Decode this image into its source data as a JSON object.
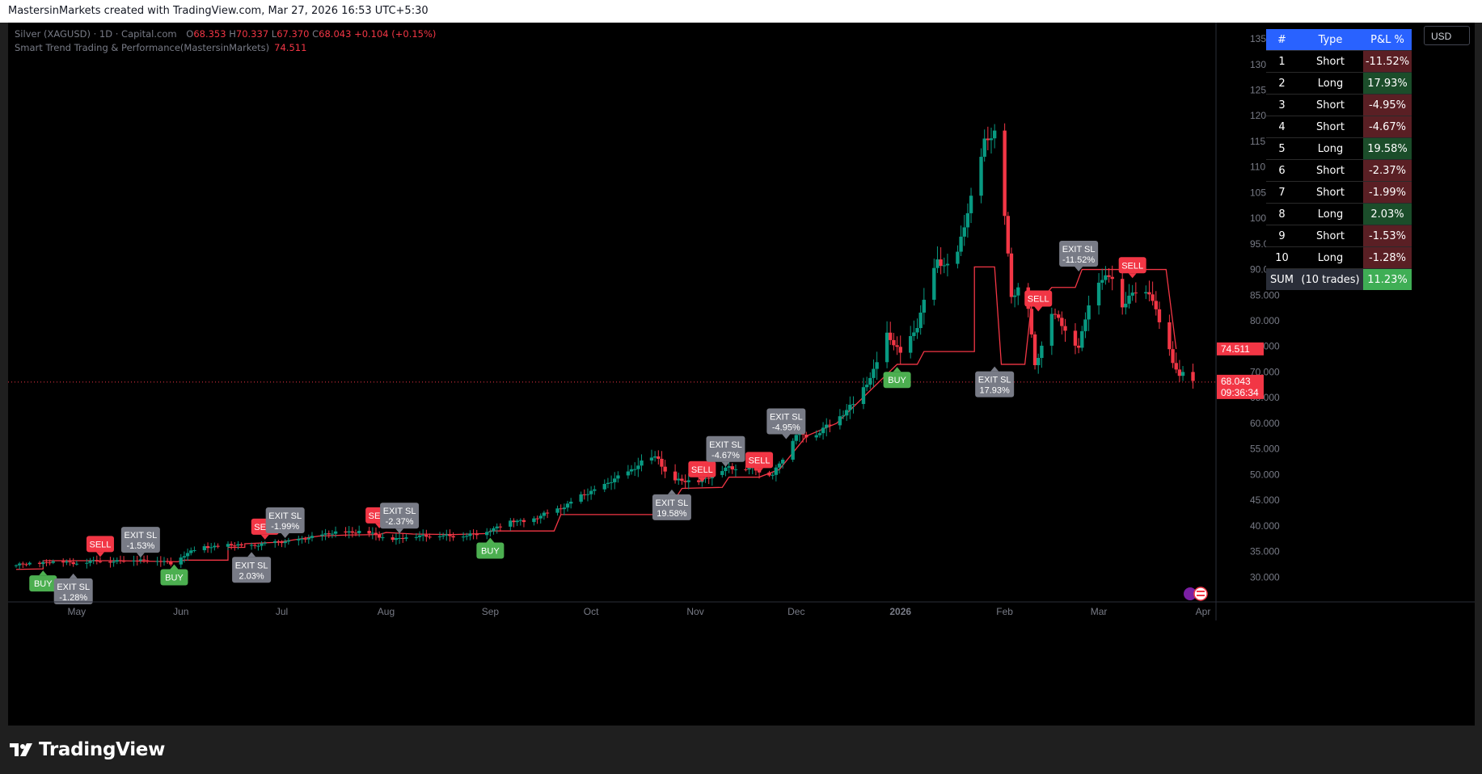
{
  "header": {
    "credit": "MastersinMarkets created with TradingView.com, Mar 27, 2026 16:53 UTC+5:30"
  },
  "legend": {
    "symbol": "Silver (XAGUSD) · 1D · Capital.com",
    "o_label": "O",
    "o_value": "68.353",
    "h_label": "H",
    "h_value": "70.337",
    "l_label": "L",
    "l_value": "67.370",
    "c_label": "C",
    "c_value": "68.043",
    "change": "+0.104 (+0.15%)",
    "indicator": "Smart Trend Trading & Performance(MastersinMarkets)",
    "indicator_value": "74.511"
  },
  "currency_button": "USD",
  "price_labels": {
    "indicator": "74.511",
    "last": "68.043",
    "countdown": "09:36:34"
  },
  "logo_text": "TradingView",
  "colors": {
    "up": "#089981",
    "down": "#f23645",
    "buy": "#4caf50",
    "sell": "#f23645",
    "exit": "#787b86",
    "header": "#2962ff"
  },
  "trade_table": {
    "headers": [
      "#",
      "Type",
      "P&L %"
    ],
    "rows": [
      {
        "n": "1",
        "type": "Short",
        "pnl": "-11.52%",
        "pos": false
      },
      {
        "n": "2",
        "type": "Long",
        "pnl": "17.93%",
        "pos": true
      },
      {
        "n": "3",
        "type": "Short",
        "pnl": "-4.95%",
        "pos": false
      },
      {
        "n": "4",
        "type": "Short",
        "pnl": "-4.67%",
        "pos": false
      },
      {
        "n": "5",
        "type": "Long",
        "pnl": "19.58%",
        "pos": true
      },
      {
        "n": "6",
        "type": "Short",
        "pnl": "-2.37%",
        "pos": false
      },
      {
        "n": "7",
        "type": "Short",
        "pnl": "-1.99%",
        "pos": false
      },
      {
        "n": "8",
        "type": "Long",
        "pnl": "2.03%",
        "pos": true
      },
      {
        "n": "9",
        "type": "Short",
        "pnl": "-1.53%",
        "pos": false
      },
      {
        "n": "10",
        "type": "Long",
        "pnl": "-1.28%",
        "pos": false
      }
    ],
    "sum": {
      "n": "SUM",
      "type": "(10 trades)",
      "pnl": "11.23%"
    }
  },
  "chart_data": {
    "type": "candlestick",
    "y_ticks": [
      30,
      35,
      40,
      45,
      50,
      55,
      60,
      65,
      70,
      75,
      80,
      85,
      90,
      95,
      100,
      105,
      110,
      115,
      120,
      125,
      130,
      135
    ],
    "y_tick_labels": [
      "30.000",
      "35.000",
      "40.000",
      "45.000",
      "50.000",
      "55.000",
      "60.000",
      "65.000",
      "70.000",
      "75.000",
      "80.000",
      "85.000",
      "90.000",
      "95.000",
      "100.000",
      "105.000",
      "110.000",
      "115.000",
      "120.000",
      "125.000",
      "130.000",
      "135.000"
    ],
    "ylim": [
      25,
      138
    ],
    "x_ticks": [
      {
        "label": "May",
        "day": 18
      },
      {
        "label": "Jun",
        "day": 49
      },
      {
        "label": "Jul",
        "day": 79
      },
      {
        "label": "Aug",
        "day": 110
      },
      {
        "label": "Sep",
        "day": 141
      },
      {
        "label": "Oct",
        "day": 171
      },
      {
        "label": "Nov",
        "day": 202
      },
      {
        "label": "Dec",
        "day": 232
      },
      {
        "label": "2026",
        "day": 263
      },
      {
        "label": "Feb",
        "day": 294
      },
      {
        "label": "Mar",
        "day": 322
      },
      {
        "label": "Apr",
        "day": 353
      }
    ],
    "x_range": [
      0,
      353
    ],
    "close_anchors": [
      [
        0,
        32.3
      ],
      [
        10,
        33.0
      ],
      [
        18,
        32.8
      ],
      [
        25,
        33.1
      ],
      [
        32,
        33.2
      ],
      [
        40,
        33.4
      ],
      [
        46,
        32.6
      ],
      [
        50,
        34.4
      ],
      [
        55,
        35.8
      ],
      [
        62,
        36.2
      ],
      [
        68,
        36.1
      ],
      [
        74,
        36.4
      ],
      [
        79,
        37.0
      ],
      [
        85,
        37.2
      ],
      [
        90,
        38.3
      ],
      [
        96,
        38.6
      ],
      [
        102,
        39.0
      ],
      [
        108,
        37.9
      ],
      [
        114,
        37.4
      ],
      [
        120,
        38.2
      ],
      [
        126,
        38.0
      ],
      [
        132,
        38.1
      ],
      [
        138,
        38.3
      ],
      [
        141,
        39.3
      ],
      [
        147,
        40.8
      ],
      [
        153,
        41.1
      ],
      [
        158,
        42.4
      ],
      [
        164,
        44.2
      ],
      [
        171,
        46.8
      ],
      [
        176,
        48.2
      ],
      [
        182,
        50.6
      ],
      [
        187,
        52.8
      ],
      [
        191,
        53.3
      ],
      [
        194,
        49.2
      ],
      [
        198,
        48.6
      ],
      [
        202,
        48.7
      ],
      [
        207,
        49.8
      ],
      [
        212,
        51.5
      ],
      [
        217,
        51.2
      ],
      [
        221,
        50.6
      ],
      [
        225,
        50.2
      ],
      [
        229,
        54.0
      ],
      [
        232,
        58.0
      ],
      [
        238,
        57.6
      ],
      [
        244,
        61.0
      ],
      [
        250,
        64.2
      ],
      [
        255,
        70.5
      ],
      [
        259,
        77.0
      ],
      [
        263,
        73.6
      ],
      [
        268,
        79.0
      ],
      [
        274,
        92.0
      ],
      [
        279,
        90.0
      ],
      [
        284,
        104.0
      ],
      [
        288,
        115.0
      ],
      [
        292,
        116.5
      ],
      [
        296,
        85.0
      ],
      [
        300,
        88.0
      ],
      [
        303,
        71.0
      ],
      [
        308,
        82.0
      ],
      [
        312,
        78.0
      ],
      [
        316,
        75.0
      ],
      [
        319,
        83.5
      ],
      [
        322,
        87.5
      ],
      [
        326,
        89.0
      ],
      [
        329,
        83.0
      ],
      [
        333,
        85.5
      ],
      [
        337,
        86.0
      ],
      [
        340,
        80.0
      ],
      [
        344,
        72.0
      ],
      [
        346,
        69.0
      ],
      [
        348,
        71.8
      ],
      [
        350,
        68.0
      ]
    ],
    "trend_line": [
      [
        0,
        31.5
      ],
      [
        8,
        31.6
      ],
      [
        8,
        33.2
      ],
      [
        30,
        33.2
      ],
      [
        48,
        33.0
      ],
      [
        50,
        33.3
      ],
      [
        63,
        33.3
      ],
      [
        63,
        35.8
      ],
      [
        68,
        35.8
      ],
      [
        68,
        36.5
      ],
      [
        78,
        36.8
      ],
      [
        90,
        38.0
      ],
      [
        98,
        38.2
      ],
      [
        108,
        38.3
      ],
      [
        110,
        38.7
      ],
      [
        118,
        38.4
      ],
      [
        130,
        38.3
      ],
      [
        140,
        38.5
      ],
      [
        141,
        39.0
      ],
      [
        160,
        39.0
      ],
      [
        162,
        42.2
      ],
      [
        193,
        42.2
      ],
      [
        198,
        47.3
      ],
      [
        210,
        47.5
      ],
      [
        212,
        49.5
      ],
      [
        221,
        49.5
      ],
      [
        227,
        51.0
      ],
      [
        235,
        57.5
      ],
      [
        244,
        60.0
      ],
      [
        262,
        71.5
      ],
      [
        268,
        71.5
      ],
      [
        270,
        74.0
      ],
      [
        285,
        74.0
      ],
      [
        285,
        90.5
      ],
      [
        291,
        90.5
      ],
      [
        293,
        71.5
      ],
      [
        296,
        71.5
      ],
      [
        300,
        71.5
      ],
      [
        302,
        83.5
      ],
      [
        304,
        83.5
      ],
      [
        308,
        86.5
      ],
      [
        315,
        86.5
      ],
      [
        317,
        90.0
      ],
      [
        325,
        90.0
      ],
      [
        332,
        90.0
      ],
      [
        342,
        90.0
      ],
      [
        345,
        74.5
      ]
    ],
    "signals": [
      {
        "kind": "buy",
        "day": 8,
        "price": 31.6,
        "text": [
          "BUY"
        ]
      },
      {
        "kind": "exit",
        "day": 17,
        "price": 31.0,
        "text": [
          "EXIT SL",
          "-1.28%"
        ]
      },
      {
        "kind": "sell",
        "day": 25,
        "price": 33.6,
        "text": [
          "SELL"
        ]
      },
      {
        "kind": "exit",
        "day": 37,
        "price": 33.5,
        "text": [
          "EXIT SL",
          "-1.53%"
        ],
        "above": true
      },
      {
        "kind": "buy",
        "day": 47,
        "price": 32.8,
        "text": [
          "BUY"
        ]
      },
      {
        "kind": "exit",
        "day": 70,
        "price": 35.2,
        "text": [
          "EXIT SL",
          "2.03%"
        ]
      },
      {
        "kind": "sell",
        "day": 74,
        "price": 37.0,
        "text": [
          "SELL"
        ]
      },
      {
        "kind": "exit",
        "day": 80,
        "price": 37.3,
        "text": [
          "EXIT SL",
          "-1.99%"
        ],
        "above": true
      },
      {
        "kind": "sell",
        "day": 108,
        "price": 39.2,
        "text": [
          "SELL"
        ]
      },
      {
        "kind": "exit",
        "day": 114,
        "price": 38.2,
        "text": [
          "EXIT SL",
          "-2.37%"
        ],
        "above": true
      },
      {
        "kind": "buy",
        "day": 141,
        "price": 38.0,
        "text": [
          "BUY"
        ]
      },
      {
        "kind": "exit",
        "day": 195,
        "price": 47.4,
        "text": [
          "EXIT SL",
          "19.58%"
        ]
      },
      {
        "kind": "sell",
        "day": 204,
        "price": 48.2,
        "text": [
          "SELL"
        ]
      },
      {
        "kind": "exit",
        "day": 211,
        "price": 51.2,
        "text": [
          "EXIT SL",
          "-4.67%"
        ],
        "above": true
      },
      {
        "kind": "sell",
        "day": 221,
        "price": 50.0,
        "text": [
          "SELL"
        ]
      },
      {
        "kind": "exit",
        "day": 229,
        "price": 56.6,
        "text": [
          "EXIT SL",
          "-4.95%"
        ],
        "above": true
      },
      {
        "kind": "buy",
        "day": 262,
        "price": 71.3,
        "text": [
          "BUY"
        ]
      },
      {
        "kind": "exit",
        "day": 291,
        "price": 71.4,
        "text": [
          "EXIT SL",
          "17.93%"
        ]
      },
      {
        "kind": "sell",
        "day": 304,
        "price": 81.5,
        "text": [
          "SELL"
        ]
      },
      {
        "kind": "exit",
        "day": 316,
        "price": 89.3,
        "text": [
          "EXIT SL",
          "-11.52%"
        ],
        "above": true
      },
      {
        "kind": "sell",
        "day": 332,
        "price": 88.0,
        "text": [
          "SELL"
        ]
      }
    ],
    "last_price": 68.043,
    "indicator_value": 74.511
  }
}
